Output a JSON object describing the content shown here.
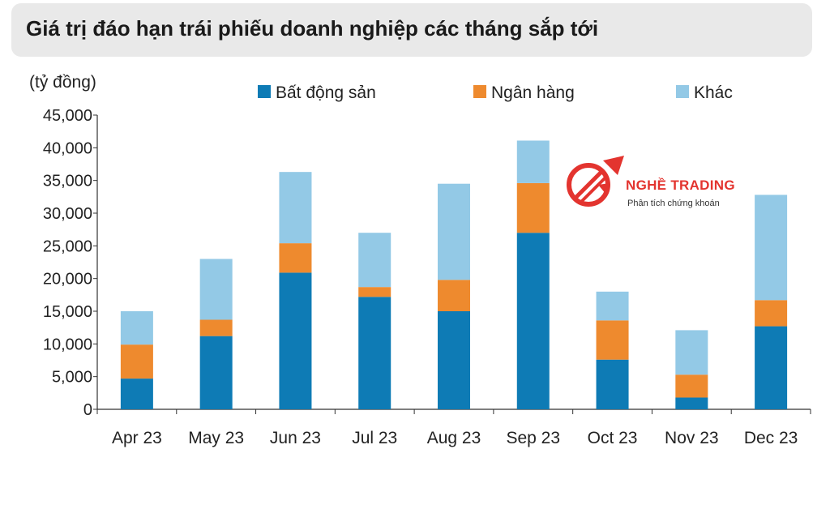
{
  "title": "Giá trị đáo hạn trái phiếu doanh nghiệp các tháng sắp tới",
  "logo": {
    "name": "NGHỀ TRADING",
    "tagline": "Phân tích chứng khoán"
  },
  "colors": {
    "bds": "#0e7bb5",
    "bank": "#ee8a2e",
    "other": "#93c9e6",
    "accent": "#e3342f"
  },
  "chart_data": {
    "type": "bar",
    "stacked": true,
    "ylabel": "(tỷ đồng)",
    "xlabel": "",
    "ylim": [
      0,
      45000
    ],
    "yticks": [
      0,
      5000,
      10000,
      15000,
      20000,
      25000,
      30000,
      35000,
      40000,
      45000
    ],
    "ytick_labels": [
      "0",
      "5,000",
      "10,000",
      "15,000",
      "20,000",
      "25,000",
      "30,000",
      "35,000",
      "40,000",
      "45,000"
    ],
    "grid": false,
    "legend_position": "top",
    "categories": [
      "Apr 23",
      "May 23",
      "Jun 23",
      "Jul 23",
      "Aug 23",
      "Sep 23",
      "Oct 23",
      "Nov 23",
      "Dec 23"
    ],
    "series": [
      {
        "name": "Bất động sản",
        "color": "#0e7bb5",
        "values": [
          4700,
          11200,
          20900,
          17200,
          15000,
          27000,
          7600,
          1800,
          12700
        ]
      },
      {
        "name": "Ngân hàng",
        "color": "#ee8a2e",
        "values": [
          5200,
          2500,
          4500,
          1500,
          4800,
          7600,
          6000,
          3500,
          4000
        ]
      },
      {
        "name": "Khác",
        "color": "#93c9e6",
        "values": [
          5100,
          9300,
          10900,
          8300,
          14700,
          6500,
          4400,
          6800,
          16100
        ]
      }
    ]
  }
}
